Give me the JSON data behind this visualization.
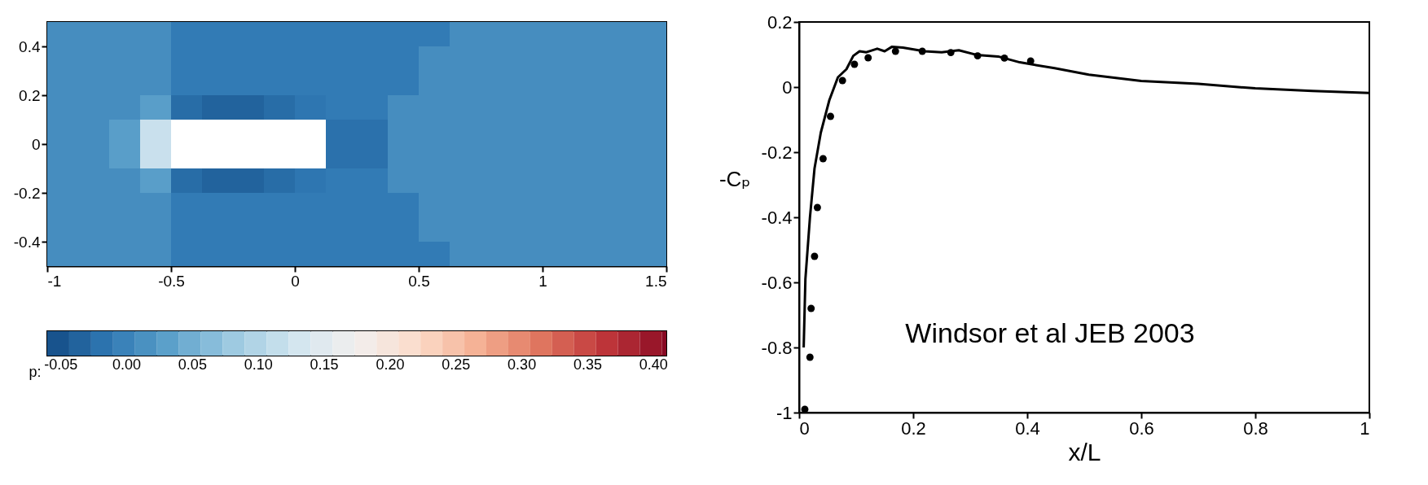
{
  "chart_data": [
    {
      "type": "heatmap",
      "x": [
        -0.9375,
        -0.8125,
        -0.6875,
        -0.5625,
        -0.4375,
        -0.3125,
        -0.1875,
        -0.0625,
        0.0625,
        0.1875,
        0.3125,
        0.4375,
        0.5625,
        0.6875,
        0.8125,
        0.9375,
        1.0625,
        1.1875,
        1.3125,
        1.4375
      ],
      "y": [
        0.45,
        0.35,
        0.25,
        0.15,
        0.05,
        -0.05,
        -0.15,
        -0.25,
        -0.35,
        -0.45
      ],
      "cells": [
        [
          0.01,
          0.01,
          0.01,
          0.01,
          -0.01,
          -0.01,
          -0.01,
          -0.01,
          -0.01,
          -0.01,
          -0.01,
          -0.01,
          -0.01,
          0.01,
          0.01,
          0.01,
          0.01,
          0.01,
          0.01,
          0.01
        ],
        [
          0.01,
          0.01,
          0.01,
          0.01,
          -0.01,
          -0.01,
          -0.01,
          -0.01,
          -0.01,
          -0.01,
          -0.01,
          -0.01,
          0.01,
          0.01,
          0.01,
          0.01,
          0.01,
          0.01,
          0.01,
          0.01
        ],
        [
          0.01,
          0.01,
          0.01,
          0.01,
          -0.01,
          -0.01,
          -0.01,
          -0.01,
          -0.01,
          -0.01,
          -0.01,
          -0.01,
          0.01,
          0.01,
          0.01,
          0.01,
          0.01,
          0.01,
          0.01,
          0.01
        ],
        [
          0.01,
          0.01,
          0.01,
          0.03,
          -0.025,
          -0.035,
          -0.035,
          -0.025,
          -0.015,
          -0.01,
          -0.01,
          0.01,
          0.01,
          0.01,
          0.01,
          0.01,
          0.01,
          0.01,
          0.01,
          0.01
        ],
        [
          0.01,
          0.01,
          0.03,
          0.12,
          null,
          null,
          null,
          null,
          null,
          -0.02,
          -0.02,
          0.01,
          0.01,
          0.01,
          0.01,
          0.01,
          0.01,
          0.01,
          0.01,
          0.01
        ],
        [
          0.01,
          0.01,
          0.03,
          0.12,
          null,
          null,
          null,
          null,
          null,
          -0.02,
          -0.02,
          0.01,
          0.01,
          0.01,
          0.01,
          0.01,
          0.01,
          0.01,
          0.01,
          0.01
        ],
        [
          0.01,
          0.01,
          0.01,
          0.03,
          -0.025,
          -0.035,
          -0.035,
          -0.025,
          -0.015,
          -0.01,
          -0.01,
          0.01,
          0.01,
          0.01,
          0.01,
          0.01,
          0.01,
          0.01,
          0.01,
          0.01
        ],
        [
          0.01,
          0.01,
          0.01,
          0.01,
          -0.01,
          -0.01,
          -0.01,
          -0.01,
          -0.01,
          -0.01,
          -0.01,
          -0.01,
          0.01,
          0.01,
          0.01,
          0.01,
          0.01,
          0.01,
          0.01,
          0.01
        ],
        [
          0.01,
          0.01,
          0.01,
          0.01,
          -0.01,
          -0.01,
          -0.01,
          -0.01,
          -0.01,
          -0.01,
          -0.01,
          -0.01,
          0.01,
          0.01,
          0.01,
          0.01,
          0.01,
          0.01,
          0.01,
          0.01
        ],
        [
          0.01,
          0.01,
          0.01,
          0.01,
          -0.01,
          -0.01,
          -0.01,
          -0.01,
          -0.01,
          -0.01,
          -0.01,
          -0.01,
          -0.01,
          0.01,
          0.01,
          0.01,
          0.01,
          0.01,
          0.01,
          0.01
        ]
      ],
      "xlim": [
        -1,
        1.5
      ],
      "xticks": [
        -1,
        -0.5,
        0,
        0.5,
        1,
        1.5
      ],
      "ylim": [
        -0.5,
        0.5
      ],
      "yticks": [
        -0.4,
        -0.2,
        0,
        0.2,
        0.4
      ],
      "clabel": "p:",
      "clim": [
        -0.06,
        0.41
      ],
      "cticks": [
        -0.05,
        {
          "value": 0,
          "label": "0.00"
        },
        0.05,
        {
          "value": 0.1,
          "label": "0.10"
        },
        0.15,
        {
          "value": 0.2,
          "label": "0.20"
        },
        0.25,
        {
          "value": 0.3,
          "label": "0.30"
        },
        0.35,
        {
          "value": 0.4,
          "label": "0.40"
        }
      ]
    },
    {
      "type": "line",
      "xlabel": "x/L",
      "ylabel": "-Cₚ",
      "annotations": [
        "Windsor et al JEB 2003"
      ],
      "xlim": [
        0,
        1
      ],
      "xticks": [
        0,
        0.2,
        0.4,
        0.6,
        0.8,
        1
      ],
      "ylim": [
        -1,
        0.2
      ],
      "yticks": [
        -1,
        -0.8,
        -0.6,
        -0.4,
        -0.2,
        0,
        0.2
      ],
      "series": [
        {
          "type": "line",
          "color": "#000000",
          "x": [
            0.008,
            0.011,
            0.019,
            0.027,
            0.038,
            0.053,
            0.068,
            0.083,
            0.095,
            0.106,
            0.118,
            0.137,
            0.15,
            0.163,
            0.182,
            0.22,
            0.25,
            0.28,
            0.311,
            0.349,
            0.387,
            0.448,
            0.508,
            0.6,
            0.7,
            0.8,
            0.9,
            1
          ],
          "values": [
            -0.8,
            -0.59,
            -0.4,
            -0.25,
            -0.14,
            -0.04,
            0.03,
            0.055,
            0.096,
            0.11,
            0.107,
            0.118,
            0.11,
            0.124,
            0.121,
            0.11,
            0.107,
            0.113,
            0.099,
            0.094,
            0.076,
            0.058,
            0.038,
            0.019,
            0.01,
            -0.004,
            -0.012,
            -0.018
          ]
        },
        {
          "type": "scatter",
          "marker": "circle",
          "color": "#000000",
          "x": [
            0.01,
            0.019,
            0.021,
            0.027,
            0.032,
            0.042,
            0.055,
            0.076,
            0.097,
            0.121,
            0.169,
            0.216,
            0.266,
            0.313,
            0.36,
            0.406
          ],
          "values": [
            -0.99,
            -0.83,
            -0.68,
            -0.52,
            -0.37,
            -0.22,
            -0.09,
            0.02,
            0.07,
            0.09,
            0.11,
            0.11,
            0.106,
            0.096,
            0.089,
            0.08
          ]
        }
      ]
    }
  ]
}
